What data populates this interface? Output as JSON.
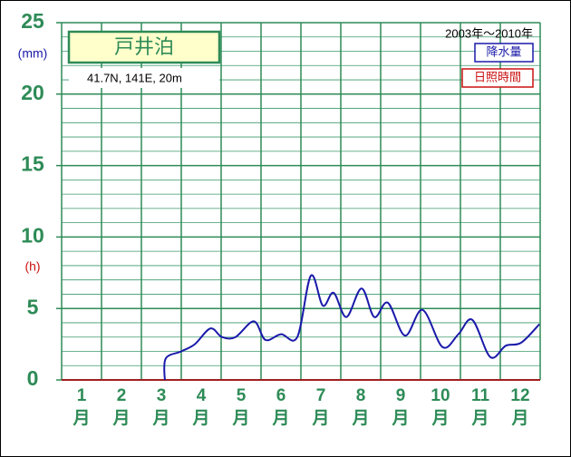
{
  "chart_data": {
    "type": "line",
    "title": "戸井泊",
    "subtitle": "41.7N, 141E, 20m",
    "period": "2003年～2010年",
    "y_label": "(mm)",
    "y2_label": "(h)",
    "categories": [
      "1",
      "2",
      "3",
      "4",
      "5",
      "6",
      "7",
      "8",
      "9",
      "10",
      "11",
      "12"
    ],
    "category_unit": "月",
    "xlim": [
      0,
      12
    ],
    "xticks": [
      0,
      1,
      2,
      3,
      4,
      5,
      6,
      7,
      8,
      9,
      10,
      11,
      12
    ],
    "ylim": [
      0,
      25
    ],
    "yticks": [
      0,
      5,
      10,
      15,
      20,
      25
    ],
    "yticks_minor": [
      1,
      2,
      3,
      4,
      6,
      7,
      8,
      9,
      11,
      12,
      13,
      14,
      16,
      17,
      18,
      19,
      21,
      22,
      23,
      24
    ],
    "grid": true,
    "legend": "top-right",
    "series": [
      {
        "name": "降水量",
        "color": "#1a1aaa",
        "x": [
          2.59,
          2.61,
          3.0,
          3.34,
          3.73,
          4.02,
          4.36,
          4.82,
          5.11,
          5.5,
          5.91,
          6.25,
          6.55,
          6.82,
          7.14,
          7.52,
          7.84,
          8.18,
          8.61,
          9.05,
          9.55,
          9.95,
          10.3,
          10.75,
          11.14,
          11.52,
          11.98
        ],
        "values": [
          0,
          1.5,
          2.0,
          2.5,
          3.6,
          3.0,
          3.0,
          4.1,
          2.8,
          3.2,
          3.0,
          7.3,
          5.2,
          6.1,
          4.4,
          6.4,
          4.4,
          5.4,
          3.1,
          4.9,
          2.3,
          3.2,
          4.2,
          1.6,
          2.4,
          2.6,
          3.9
        ]
      },
      {
        "name": "日照時間",
        "color": "#cc1111",
        "x": [],
        "values": []
      }
    ]
  }
}
